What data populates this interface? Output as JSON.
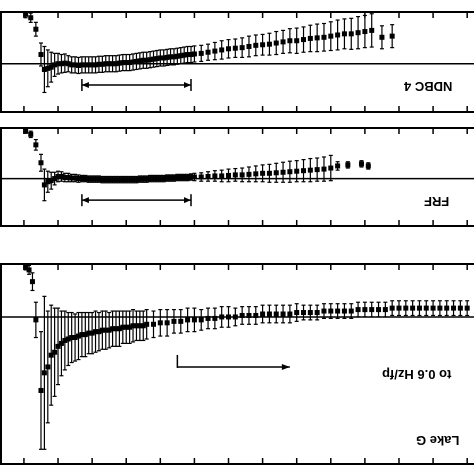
{
  "chart_data": [
    {
      "type": "scatter",
      "panel_label": "NDBC 4",
      "reference_line": 0,
      "ylim": [
        -4.2,
        4.5
      ],
      "xlim": [
        -0.35,
        13.2
      ],
      "range_arrow": {
        "from": 1.7,
        "to": 4.9
      },
      "series": [
        {
          "x": [
            0.05,
            0.2,
            0.35,
            0.5,
            0.6,
            0.7,
            0.8,
            0.9,
            1.0,
            1.1,
            1.2,
            1.3,
            1.4,
            1.5,
            1.6,
            1.7,
            1.8,
            1.9,
            2.0,
            2.1,
            2.2,
            2.3,
            2.4,
            2.5,
            2.6,
            2.7,
            2.8,
            2.9,
            3.0,
            3.1,
            3.2,
            3.3,
            3.4,
            3.5,
            3.6,
            3.7,
            3.8,
            3.9,
            4.0,
            4.1,
            4.2,
            4.3,
            4.4,
            4.5,
            4.6,
            4.7,
            4.8,
            4.9,
            5.0,
            5.2,
            5.4,
            5.6,
            5.8,
            6.0,
            6.2,
            6.4,
            6.6,
            6.8,
            7.0,
            7.2,
            7.4,
            7.6,
            7.8,
            8.0,
            8.2,
            8.4,
            8.6,
            8.8,
            9.0,
            9.2,
            9.4,
            9.6,
            9.8,
            10.0,
            10.2,
            10.5,
            10.8
          ],
          "y": [
            4.3,
            4.0,
            3.0,
            0.8,
            -0.5,
            -0.4,
            -0.3,
            -0.1,
            0.0,
            0.0,
            0.05,
            0.0,
            -0.1,
            -0.1,
            -0.15,
            -0.1,
            -0.1,
            -0.1,
            -0.1,
            -0.1,
            -0.05,
            -0.05,
            0.0,
            0.0,
            0.0,
            0.0,
            0.05,
            0.1,
            0.1,
            0.1,
            0.15,
            0.2,
            0.25,
            0.3,
            0.3,
            0.35,
            0.4,
            0.45,
            0.5,
            0.5,
            0.55,
            0.6,
            0.6,
            0.65,
            0.7,
            0.75,
            0.8,
            0.8,
            0.85,
            0.9,
            1.0,
            1.1,
            1.2,
            1.3,
            1.35,
            1.4,
            1.5,
            1.6,
            1.65,
            1.7,
            1.8,
            1.9,
            2.0,
            2.0,
            2.1,
            2.2,
            2.25,
            2.3,
            2.4,
            2.5,
            2.6,
            2.6,
            2.7,
            2.8,
            2.9,
            2.3,
            2.4
          ],
          "err": [
            0.3,
            0.4,
            0.6,
            1.0,
            2.0,
            1.6,
            1.3,
            1.0,
            0.9,
            0.8,
            0.8,
            0.7,
            0.7,
            0.7,
            0.7,
            0.7,
            0.7,
            0.7,
            0.7,
            0.7,
            0.7,
            0.7,
            0.7,
            0.7,
            0.7,
            0.7,
            0.7,
            0.7,
            0.7,
            0.7,
            0.7,
            0.7,
            0.7,
            0.7,
            0.7,
            0.7,
            0.7,
            0.7,
            0.7,
            0.7,
            0.7,
            0.7,
            0.7,
            0.7,
            0.7,
            0.7,
            0.7,
            0.7,
            0.7,
            0.7,
            0.7,
            0.75,
            0.8,
            0.8,
            0.8,
            0.85,
            0.9,
            0.9,
            0.9,
            0.95,
            1.0,
            1.0,
            1.05,
            1.1,
            1.1,
            1.15,
            1.2,
            1.2,
            1.25,
            1.3,
            1.3,
            1.35,
            1.4,
            1.4,
            1.45,
            1.0,
            1.0
          ]
        }
      ]
    },
    {
      "type": "scatter",
      "panel_label": "FRF",
      "reference_line": 0,
      "ylim": [
        -4.5,
        4.8
      ],
      "xlim": [
        -0.35,
        13.2
      ],
      "range_arrow": {
        "from": 1.7,
        "to": 4.9
      },
      "series": [
        {
          "x": [
            0.05,
            0.2,
            0.35,
            0.5,
            0.6,
            0.7,
            0.8,
            0.9,
            1.0,
            1.1,
            1.2,
            1.3,
            1.4,
            1.5,
            1.6,
            1.7,
            1.8,
            1.9,
            2.0,
            2.1,
            2.2,
            2.3,
            2.4,
            2.5,
            2.6,
            2.7,
            2.8,
            2.9,
            3.0,
            3.1,
            3.2,
            3.3,
            3.4,
            3.5,
            3.6,
            3.7,
            3.8,
            3.9,
            4.0,
            4.1,
            4.2,
            4.3,
            4.4,
            4.5,
            4.6,
            4.7,
            4.8,
            4.9,
            5.0,
            5.2,
            5.4,
            5.6,
            5.8,
            6.0,
            6.2,
            6.4,
            6.6,
            6.8,
            7.0,
            7.2,
            7.4,
            7.6,
            7.8,
            8.0,
            8.2,
            8.4,
            8.6,
            8.8,
            9.0,
            9.2,
            9.5,
            9.9,
            10.1
          ],
          "y": [
            4.5,
            4.2,
            3.2,
            1.5,
            -0.6,
            -0.3,
            -0.2,
            0.0,
            0.2,
            0.2,
            0.1,
            0.1,
            0.05,
            0.05,
            0.0,
            0.0,
            0.0,
            -0.05,
            -0.05,
            -0.05,
            -0.05,
            -0.1,
            -0.1,
            -0.1,
            -0.1,
            -0.1,
            -0.1,
            -0.1,
            -0.1,
            -0.1,
            -0.1,
            -0.1,
            -0.05,
            -0.05,
            -0.05,
            0.0,
            0.0,
            0.0,
            0.0,
            0.0,
            0.05,
            0.05,
            0.05,
            0.1,
            0.1,
            0.1,
            0.1,
            0.15,
            0.15,
            0.15,
            0.2,
            0.25,
            0.25,
            0.3,
            0.35,
            0.35,
            0.4,
            0.45,
            0.5,
            0.5,
            0.55,
            0.6,
            0.65,
            0.7,
            0.75,
            0.8,
            0.85,
            0.9,
            1.0,
            1.2,
            1.3,
            1.4,
            1.2
          ],
          "err": [
            0.2,
            0.3,
            0.5,
            0.8,
            1.5,
            1.0,
            0.8,
            0.6,
            0.5,
            0.45,
            0.4,
            0.4,
            0.35,
            0.35,
            0.35,
            0.3,
            0.3,
            0.3,
            0.3,
            0.3,
            0.3,
            0.3,
            0.3,
            0.3,
            0.3,
            0.3,
            0.3,
            0.3,
            0.3,
            0.3,
            0.3,
            0.3,
            0.3,
            0.3,
            0.3,
            0.3,
            0.3,
            0.3,
            0.3,
            0.3,
            0.3,
            0.3,
            0.3,
            0.3,
            0.3,
            0.3,
            0.3,
            0.3,
            0.35,
            0.4,
            0.45,
            0.5,
            0.55,
            0.6,
            0.6,
            0.65,
            0.7,
            0.75,
            0.8,
            0.85,
            0.9,
            0.95,
            1.0,
            1.0,
            1.05,
            1.1,
            1.1,
            1.15,
            1.2,
            0.4,
            0.3,
            0.3,
            0.3
          ]
        }
      ]
    },
    {
      "type": "scatter",
      "panel_label": "Lake G",
      "annotation": "to 0.6 Hz/fp",
      "reference_line": 0,
      "ylim": [
        -5.0,
        1.8
      ],
      "xlim": [
        -0.35,
        13.2
      ],
      "range_arrow": {
        "from": 4.5,
        "to": 7.8
      },
      "series": [
        {
          "x": [
            0.05,
            0.15,
            0.25,
            0.35,
            0.5,
            0.6,
            0.7,
            0.8,
            0.9,
            1.0,
            1.1,
            1.2,
            1.3,
            1.4,
            1.5,
            1.6,
            1.7,
            1.8,
            1.9,
            2.0,
            2.1,
            2.2,
            2.3,
            2.4,
            2.5,
            2.6,
            2.7,
            2.8,
            2.9,
            3.0,
            3.1,
            3.2,
            3.3,
            3.4,
            3.5,
            3.6,
            3.8,
            4.0,
            4.2,
            4.4,
            4.6,
            4.8,
            5.0,
            5.2,
            5.4,
            5.6,
            5.8,
            6.0,
            6.2,
            6.4,
            6.6,
            6.8,
            7.0,
            7.2,
            7.4,
            7.6,
            7.8,
            8.0,
            8.2,
            8.4,
            8.6,
            8.8,
            9.0,
            9.2,
            9.4,
            9.6,
            9.8,
            10.0,
            10.2,
            10.4,
            10.6,
            10.8,
            11.0,
            11.2,
            11.4,
            11.6,
            11.8,
            12.0,
            12.2,
            12.4,
            12.6,
            12.8,
            13.0
          ],
          "y": [
            1.7,
            1.6,
            1.2,
            -0.1,
            -2.5,
            -1.9,
            -1.7,
            -1.3,
            -1.2,
            -1.0,
            -0.9,
            -0.8,
            -0.75,
            -0.7,
            -0.7,
            -0.65,
            -0.6,
            -0.6,
            -0.55,
            -0.55,
            -0.5,
            -0.5,
            -0.45,
            -0.45,
            -0.45,
            -0.4,
            -0.4,
            -0.4,
            -0.35,
            -0.35,
            -0.35,
            -0.3,
            -0.3,
            -0.3,
            -0.3,
            -0.25,
            -0.25,
            -0.2,
            -0.2,
            -0.15,
            -0.15,
            -0.1,
            -0.1,
            -0.1,
            -0.05,
            -0.05,
            0.0,
            0.0,
            0.0,
            0.05,
            0.05,
            0.05,
            0.1,
            0.1,
            0.1,
            0.1,
            0.1,
            0.15,
            0.15,
            0.15,
            0.15,
            0.2,
            0.2,
            0.2,
            0.2,
            0.2,
            0.25,
            0.25,
            0.25,
            0.25,
            0.25,
            0.3,
            0.3,
            0.3,
            0.3,
            0.3,
            0.3,
            0.3,
            0.3,
            0.3,
            0.3,
            0.3,
            0.3
          ],
          "err": [
            0.1,
            0.15,
            0.3,
            0.6,
            2.0,
            2.6,
            1.9,
            1.7,
            1.5,
            1.3,
            1.1,
            1.0,
            0.9,
            0.85,
            0.8,
            0.8,
            0.75,
            0.75,
            0.7,
            0.7,
            0.7,
            0.65,
            0.65,
            0.65,
            0.6,
            0.6,
            0.6,
            0.6,
            0.55,
            0.55,
            0.55,
            0.55,
            0.5,
            0.5,
            0.5,
            0.5,
            0.45,
            0.45,
            0.45,
            0.4,
            0.4,
            0.4,
            0.4,
            0.35,
            0.35,
            0.35,
            0.35,
            0.35,
            0.3,
            0.3,
            0.3,
            0.3,
            0.3,
            0.3,
            0.3,
            0.3,
            0.3,
            0.3,
            0.25,
            0.25,
            0.25,
            0.25,
            0.25,
            0.25,
            0.25,
            0.25,
            0.25,
            0.25,
            0.25,
            0.25,
            0.25,
            0.25,
            0.25,
            0.25,
            0.25,
            0.25,
            0.25,
            0.25,
            0.25,
            0.25,
            0.25,
            0.25,
            0.25
          ]
        }
      ]
    }
  ]
}
